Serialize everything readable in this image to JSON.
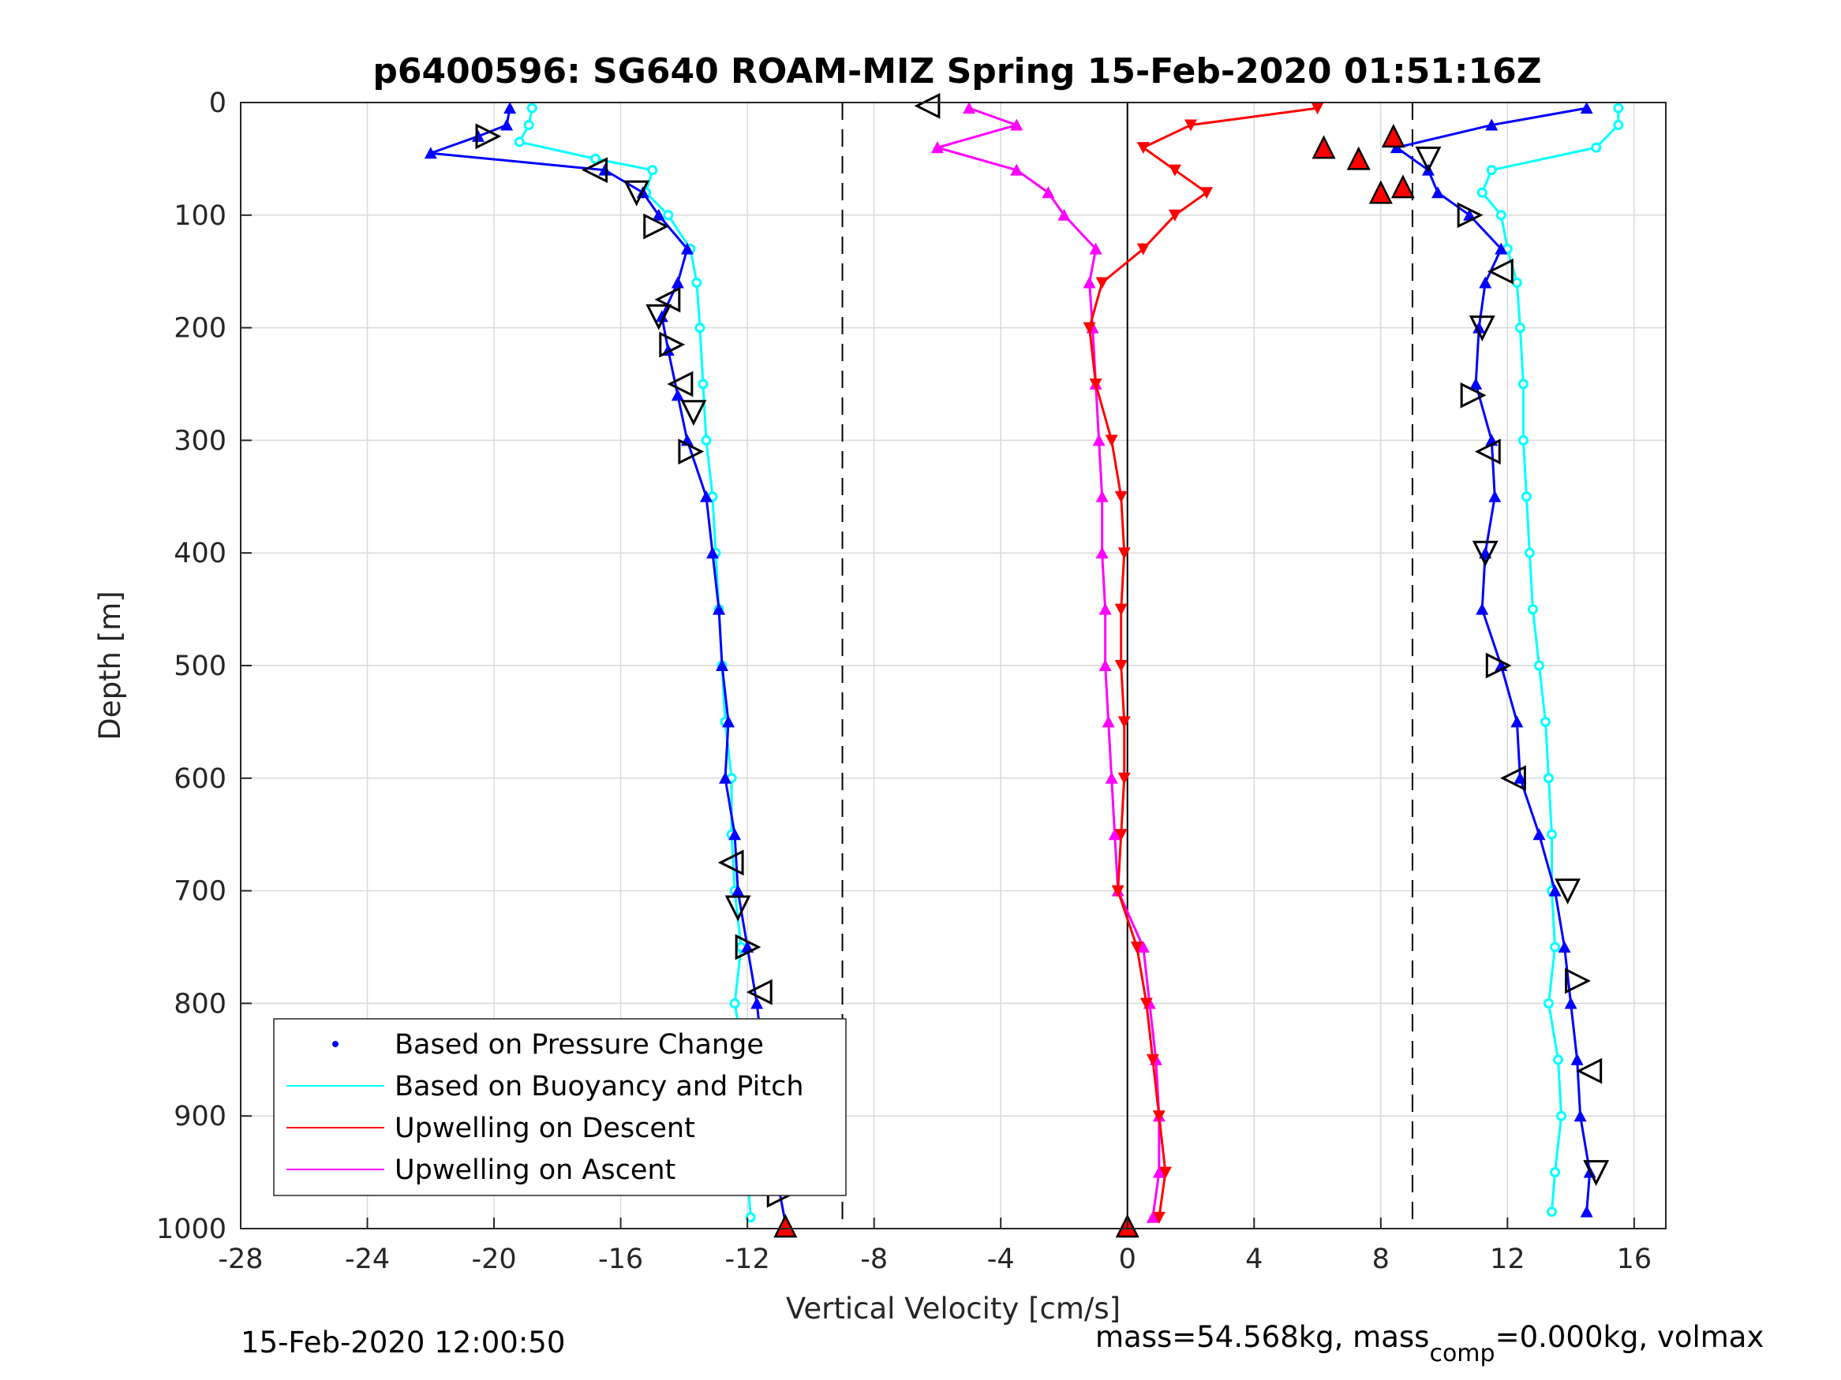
{
  "chart_data": {
    "type": "scatter",
    "title": "p6400596: SG640 ROAM-MIZ Spring 15-Feb-2020 01:51:16Z",
    "xlabel": "Vertical Velocity [cm/s]",
    "ylabel": "Depth [m]",
    "xlim": [
      -28,
      17
    ],
    "ylim": [
      1000,
      0
    ],
    "y_reversed": true,
    "grid": true,
    "xticks": [
      "-28",
      "-24",
      "-20",
      "-16",
      "-12",
      "-8",
      "-4",
      "0",
      "4",
      "8",
      "12",
      "16"
    ],
    "yticks": [
      "0",
      "100",
      "200",
      "300",
      "400",
      "500",
      "600",
      "700",
      "800",
      "900",
      "1000"
    ],
    "reference_lines": [
      {
        "style": "dashed",
        "x": -9
      },
      {
        "style": "dashed",
        "x": 9
      },
      {
        "style": "solid",
        "x": 0
      }
    ],
    "legend": {
      "position": "bottom-left",
      "entries": [
        {
          "label": "Based on Pressure Change",
          "color": "#0000ff",
          "marker": "dot"
        },
        {
          "label": "Based on Buoyancy and Pitch",
          "color": "#00ffff",
          "marker": "line"
        },
        {
          "label": "Upwelling on Descent",
          "color": "#ff0000",
          "marker": "line"
        },
        {
          "label": "Upwelling on Ascent",
          "color": "#ff00ff",
          "marker": "line"
        }
      ]
    },
    "series": [
      {
        "name": "Based on Pressure Change (descent)",
        "color": "#0000ff",
        "depth": [
          5,
          20,
          30,
          45,
          60,
          80,
          100,
          130,
          160,
          190,
          220,
          260,
          300,
          350,
          400,
          450,
          500,
          550,
          600,
          650,
          700,
          750,
          800,
          850,
          900,
          950,
          995
        ],
        "x": [
          -19.5,
          -19.6,
          -20.5,
          -22,
          -16.5,
          -15.3,
          -14.8,
          -13.9,
          -14.2,
          -14.7,
          -14.5,
          -14.2,
          -13.9,
          -13.3,
          -13.1,
          -12.9,
          -12.8,
          -12.6,
          -12.7,
          -12.4,
          -12.3,
          -12.0,
          -11.7,
          -11.5,
          -11.3,
          -11.1,
          -10.8
        ]
      },
      {
        "name": "Based on Buoyancy and Pitch (descent)",
        "color": "#00ffff",
        "depth": [
          5,
          20,
          35,
          50,
          60,
          80,
          100,
          130,
          160,
          200,
          250,
          300,
          350,
          400,
          450,
          500,
          550,
          600,
          650,
          700,
          750,
          800,
          850,
          900,
          950,
          990
        ],
        "x": [
          -18.8,
          -18.9,
          -19.2,
          -16.8,
          -15.0,
          -15.2,
          -14.5,
          -13.8,
          -13.6,
          -13.5,
          -13.4,
          -13.3,
          -13.1,
          -13.0,
          -12.9,
          -12.8,
          -12.7,
          -12.5,
          -12.5,
          -12.4,
          -12.2,
          -12.4,
          -12.1,
          -12.0,
          -12.0,
          -11.9
        ]
      },
      {
        "name": "Based on Pressure Change (ascent)",
        "color": "#0000ff",
        "depth": [
          5,
          20,
          40,
          60,
          80,
          100,
          130,
          160,
          200,
          250,
          300,
          350,
          400,
          450,
          500,
          550,
          600,
          650,
          700,
          750,
          800,
          850,
          900,
          950,
          985
        ],
        "x": [
          14.5,
          11.5,
          8.5,
          9.5,
          9.8,
          10.8,
          11.8,
          11.3,
          11.1,
          11.0,
          11.5,
          11.6,
          11.3,
          11.2,
          11.8,
          12.3,
          12.4,
          13.0,
          13.5,
          13.8,
          14.0,
          14.2,
          14.3,
          14.6,
          14.5
        ]
      },
      {
        "name": "Based on Buoyancy and Pitch (ascent)",
        "color": "#00ffff",
        "depth": [
          5,
          20,
          40,
          60,
          80,
          100,
          130,
          160,
          200,
          250,
          300,
          350,
          400,
          450,
          500,
          550,
          600,
          650,
          700,
          750,
          800,
          850,
          900,
          950,
          985
        ],
        "x": [
          15.5,
          15.5,
          14.8,
          11.5,
          11.2,
          11.8,
          12.0,
          12.3,
          12.4,
          12.5,
          12.5,
          12.6,
          12.7,
          12.8,
          13.0,
          13.2,
          13.3,
          13.4,
          13.4,
          13.5,
          13.3,
          13.6,
          13.7,
          13.5,
          13.4
        ]
      },
      {
        "name": "Upwelling on Descent",
        "color": "#ff0000",
        "depth": [
          5,
          20,
          40,
          60,
          80,
          100,
          130,
          160,
          200,
          250,
          300,
          350,
          400,
          450,
          500,
          550,
          600,
          650,
          700,
          750,
          800,
          850,
          900,
          950,
          990
        ],
        "x": [
          6,
          2,
          0.5,
          1.5,
          2.5,
          1.5,
          0.5,
          -0.8,
          -1.2,
          -1.0,
          -0.5,
          -0.2,
          -0.1,
          -0.2,
          -0.2,
          -0.1,
          -0.1,
          -0.2,
          -0.3,
          0.3,
          0.6,
          0.8,
          1.0,
          1.2,
          1.0
        ]
      },
      {
        "name": "Upwelling on Ascent",
        "color": "#ff00ff",
        "depth": [
          5,
          20,
          40,
          60,
          80,
          100,
          130,
          160,
          200,
          250,
          300,
          350,
          400,
          450,
          500,
          550,
          600,
          650,
          700,
          750,
          800,
          850,
          900,
          950,
          990
        ],
        "x": [
          -5,
          -3.5,
          -6,
          -3.5,
          -2.5,
          -2,
          -1.0,
          -1.2,
          -1.1,
          -1.0,
          -0.9,
          -0.8,
          -0.8,
          -0.7,
          -0.7,
          -0.6,
          -0.5,
          -0.4,
          -0.3,
          0.5,
          0.7,
          0.9,
          1.0,
          1.0,
          0.8
        ]
      },
      {
        "name": "markers",
        "color": "#000000",
        "depth": [
          30,
          60,
          80,
          110,
          175,
          190,
          215,
          250,
          275,
          310,
          675,
          715,
          750,
          790,
          830,
          865,
          895,
          935,
          970,
          3,
          50,
          100,
          150,
          200,
          260,
          310,
          400,
          500,
          600,
          700,
          780,
          860,
          950
        ],
        "x": [
          -20.2,
          -16.8,
          -15.5,
          -14.9,
          -14.5,
          -14.8,
          -14.4,
          -14.1,
          -13.7,
          -13.8,
          -12.5,
          -12.3,
          -12.0,
          -11.6,
          -11.7,
          -11.4,
          -11.2,
          -10.9,
          -11.0,
          -6.3,
          9.5,
          10.8,
          11.8,
          11.2,
          10.9,
          11.4,
          11.3,
          11.7,
          12.2,
          13.9,
          14.2,
          14.6,
          14.8
        ]
      }
    ]
  },
  "footer": {
    "left": "15-Feb-2020 12:00:50",
    "right_a": "mass=54.568kg, mass",
    "right_sub": "comp",
    "right_b": "=0.000kg, volmax"
  }
}
